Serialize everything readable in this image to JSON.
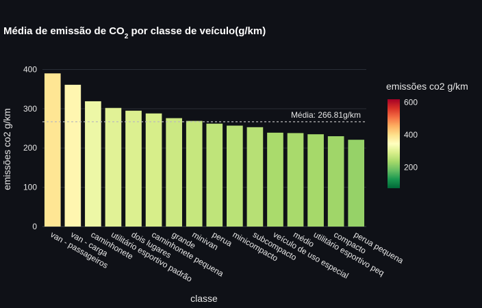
{
  "chart_data": {
    "type": "bar",
    "title": {
      "prefix": "Média de emissão de CO",
      "subscript": "2",
      "suffix": " por classe de veículo(g/km)"
    },
    "xlabel": "classe",
    "ylabel": "emissões co2 g/km",
    "ylim": [
      0,
      420
    ],
    "yticks": [
      0,
      100,
      200,
      300,
      400
    ],
    "grid": true,
    "categories": [
      "van - passageiros",
      "van - carga",
      "caminhonete",
      "utilitário esportivo padrão",
      "dois lugares",
      "caminhonete pequena",
      "grande",
      "minivan",
      "perua",
      "minicompacto",
      "subcompacto",
      "veículo de uso especial",
      "médio",
      "utilitário esportivo peq",
      "compacto",
      "perua pequena"
    ],
    "values": [
      390,
      361,
      319,
      302,
      295,
      288,
      276,
      269,
      262,
      257,
      253,
      239,
      238,
      235,
      230,
      221
    ],
    "average": {
      "value": 266.81,
      "label": "Média: 266.81g/km"
    },
    "colorbar": {
      "title": "emissões co2 g/km",
      "range": [
        70,
        620
      ],
      "ticks": [
        200,
        400,
        600
      ],
      "colorscale": "RdYlGn-reversed"
    }
  }
}
